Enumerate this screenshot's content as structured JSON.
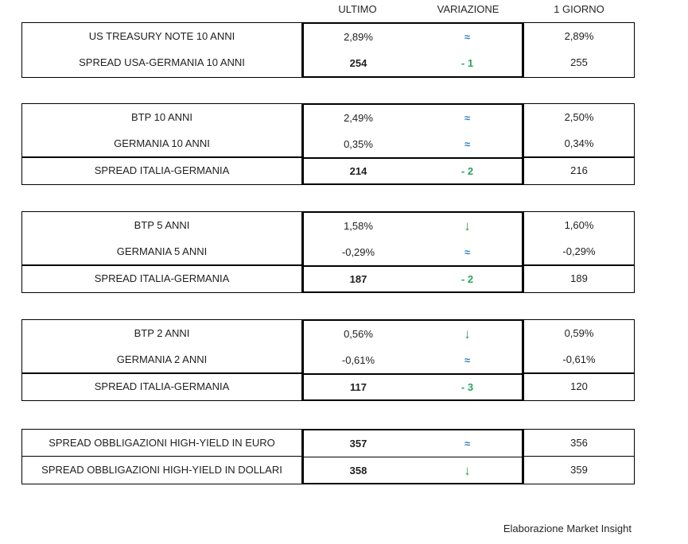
{
  "header": {
    "columns": [
      "ULTIMO",
      "VARIAZIONE",
      "1 GIORNO"
    ]
  },
  "colors": {
    "approx_blue": "#2e7fc1",
    "delta_green": "#27a35c",
    "border_black": "#000000"
  },
  "icons": {
    "approx_equal": "≈",
    "down_arrow": "↓"
  },
  "groups": [
    {
      "rows": [
        {
          "label": "US TREASURY NOTE 10 ANNI",
          "ultimo": "2,89%",
          "strong": false,
          "var_type": "approx",
          "var_text": "≈",
          "giorno": "2,89%",
          "sep": "none"
        },
        {
          "label": "SPREAD USA-GERMANIA 10 ANNI",
          "ultimo": "254",
          "strong": true,
          "var_type": "delta",
          "var_text": "- 1",
          "giorno": "255",
          "sep": "none"
        }
      ]
    },
    {
      "rows": [
        {
          "label": "BTP 10 ANNI",
          "ultimo": "2,49%",
          "strong": false,
          "var_type": "approx",
          "var_text": "≈",
          "giorno": "2,50%",
          "sep": "none"
        },
        {
          "label": "GERMANIA 10 ANNI",
          "ultimo": "0,35%",
          "strong": false,
          "var_type": "approx",
          "var_text": "≈",
          "giorno": "0,34%",
          "sep": "none"
        },
        {
          "label": "SPREAD ITALIA-GERMANIA",
          "ultimo": "214",
          "strong": true,
          "var_type": "delta",
          "var_text": "- 2",
          "giorno": "216",
          "sep": "thick"
        }
      ]
    },
    {
      "rows": [
        {
          "label": "BTP 5 ANNI",
          "ultimo": "1,58%",
          "strong": false,
          "var_type": "down",
          "var_text": "↓",
          "giorno": "1,60%",
          "sep": "none"
        },
        {
          "label": "GERMANIA 5 ANNI",
          "ultimo": "-0,29%",
          "strong": false,
          "var_type": "approx",
          "var_text": "≈",
          "giorno": "-0,29%",
          "sep": "none"
        },
        {
          "label": "SPREAD ITALIA-GERMANIA",
          "ultimo": "187",
          "strong": true,
          "var_type": "delta",
          "var_text": "- 2",
          "giorno": "189",
          "sep": "thick"
        }
      ]
    },
    {
      "rows": [
        {
          "label": "BTP 2 ANNI",
          "ultimo": "0,56%",
          "strong": false,
          "var_type": "down",
          "var_text": "↓",
          "giorno": "0,59%",
          "sep": "none"
        },
        {
          "label": "GERMANIA 2 ANNI",
          "ultimo": "-0,61%",
          "strong": false,
          "var_type": "approx",
          "var_text": "≈",
          "giorno": "-0,61%",
          "sep": "none"
        },
        {
          "label": "SPREAD ITALIA-GERMANIA",
          "ultimo": "117",
          "strong": true,
          "var_type": "delta",
          "var_text": "- 3",
          "giorno": "120",
          "sep": "thick"
        }
      ]
    },
    {
      "rows": [
        {
          "label": "SPREAD OBBLIGAZIONI HIGH-YIELD IN EURO",
          "ultimo": "357",
          "strong": true,
          "var_type": "approx",
          "var_text": "≈",
          "giorno": "356",
          "sep": "none"
        },
        {
          "label": "SPREAD OBBLIGAZIONI HIGH-YIELD IN DOLLARI",
          "ultimo": "358",
          "strong": true,
          "var_type": "down",
          "var_text": "↓",
          "giorno": "359",
          "sep": "thin"
        }
      ]
    }
  ],
  "footer": {
    "credit": "Elaborazione Market Insight"
  }
}
